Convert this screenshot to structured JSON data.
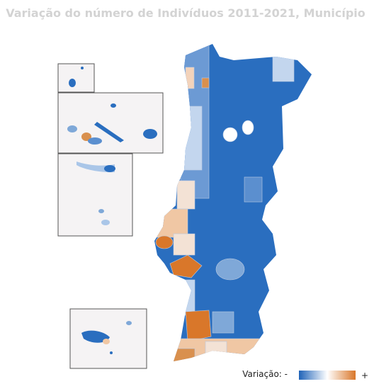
{
  "title": "Variação do número de Indivíduos 2011-2021, Município",
  "legend": {
    "label": "Variação: -",
    "max_label": "+",
    "colors": [
      "#1f63b8",
      "#ffffff",
      "#d9772a"
    ]
  }
}
